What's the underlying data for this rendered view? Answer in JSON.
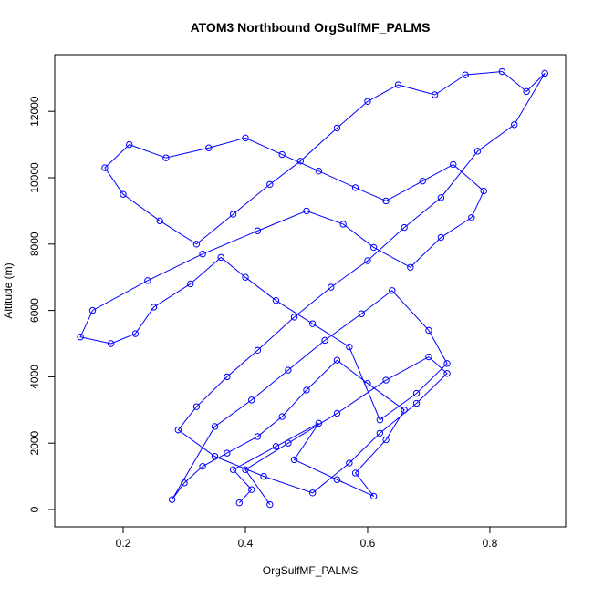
{
  "chart_data": {
    "type": "scatter-line",
    "title": "ATOM3 Northbound OrgSulfMF_PALMS",
    "x_label": "OrgSulfMF_PALMS",
    "y_label": "Altitude (m)",
    "color": "#0000ff",
    "xlim": [
      0.088,
      0.924
    ],
    "ylim": [
      -522,
      13709
    ],
    "xticks": [
      0.2,
      0.4,
      0.6,
      0.8
    ],
    "yticks": [
      0,
      2000,
      4000,
      6000,
      8000,
      10000,
      12000
    ],
    "series": [
      {
        "x": [
          0.39,
          0.41,
          0.38,
          0.45,
          0.52,
          0.48,
          0.55,
          0.61,
          0.58,
          0.63,
          0.66,
          0.6,
          0.55,
          0.5,
          0.46,
          0.42,
          0.37,
          0.33,
          0.3,
          0.28,
          0.35,
          0.41,
          0.47,
          0.53,
          0.59,
          0.64,
          0.7,
          0.73,
          0.68,
          0.62,
          0.57,
          0.51,
          0.45,
          0.4,
          0.36,
          0.31,
          0.25,
          0.22,
          0.18,
          0.13,
          0.15,
          0.24,
          0.33,
          0.42,
          0.5,
          0.56,
          0.61,
          0.67,
          0.72,
          0.77,
          0.79,
          0.74,
          0.69,
          0.63,
          0.58,
          0.52,
          0.46,
          0.4,
          0.34,
          0.27,
          0.21,
          0.17,
          0.2,
          0.26,
          0.32,
          0.38,
          0.44,
          0.49,
          0.55,
          0.6,
          0.65,
          0.71,
          0.76,
          0.82,
          0.86,
          0.89,
          0.84,
          0.78,
          0.72,
          0.66,
          0.6,
          0.54,
          0.48,
          0.42,
          0.37,
          0.32,
          0.29,
          0.35,
          0.43,
          0.51,
          0.57,
          0.62,
          0.68,
          0.73,
          0.7,
          0.63,
          0.55,
          0.47,
          0.4,
          0.44
        ],
        "values": [
          200,
          600,
          1200,
          1900,
          2600,
          1500,
          900,
          400,
          1100,
          2100,
          3000,
          3800,
          4500,
          3600,
          2800,
          2200,
          1700,
          1300,
          800,
          300,
          2500,
          3300,
          4200,
          5100,
          5900,
          6600,
          5400,
          4400,
          3500,
          2700,
          4900,
          5600,
          6300,
          7000,
          7600,
          6800,
          6100,
          5300,
          5000,
          5200,
          6000,
          6900,
          7700,
          8400,
          9000,
          8600,
          7900,
          7300,
          8200,
          8800,
          9600,
          10400,
          9900,
          9300,
          9700,
          10200,
          10700,
          11200,
          10900,
          10600,
          11000,
          10300,
          9500,
          8700,
          8000,
          8900,
          9800,
          10500,
          11500,
          12300,
          12800,
          12500,
          13100,
          13200,
          12600,
          13150,
          11600,
          10800,
          9400,
          8500,
          7500,
          6700,
          5800,
          4800,
          4000,
          3100,
          2400,
          1600,
          1000,
          500,
          1400,
          2300,
          3200,
          4100,
          4600,
          3900,
          2900,
          2000,
          1200,
          150
        ]
      }
    ]
  }
}
